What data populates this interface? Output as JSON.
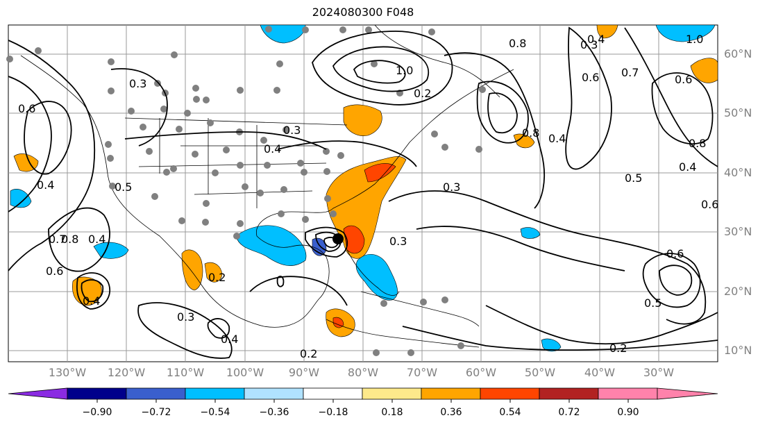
{
  "title": "2024080300 F048",
  "lat_labels": [
    "60°N",
    "50°N",
    "40°N",
    "30°N",
    "20°N",
    "10°N"
  ],
  "lon_labels": [
    "130°W",
    "120°W",
    "110°W",
    "100°W",
    "90°W",
    "80°W",
    "70°W",
    "60°W",
    "50°W",
    "40°W",
    "30°W"
  ],
  "contour_labels": [
    "0.3",
    "0.6",
    "0.4",
    "0.4",
    "0.7",
    "0.8",
    "0.4",
    "0.6",
    "0.5",
    "0.3",
    "0.2",
    "0.3",
    "0.3",
    "0.4",
    "0.4",
    "0.2",
    "1.0",
    "0.8",
    "0.8",
    "0.4",
    "0.6",
    "1.0",
    "0.8",
    "0.5",
    "0.4",
    "0.6",
    "0.7",
    "0.6",
    "0.6",
    "0.5",
    "0.2",
    "0.2",
    "0.3",
    "0.3",
    "0.4"
  ],
  "colorbar": {
    "ticks": [
      "−0.90",
      "−0.72",
      "−0.54",
      "−0.36",
      "−0.18",
      "0.18",
      "0.36",
      "0.54",
      "0.72",
      "0.90"
    ],
    "colors": [
      "#8a2be2",
      "#00008b",
      "#3a5fcd",
      "#00bfff",
      "#b0e2ff",
      "#ffffff",
      "#fde98b",
      "#ffa500",
      "#ff4500",
      "#b22222",
      "#ff82ab"
    ]
  }
}
